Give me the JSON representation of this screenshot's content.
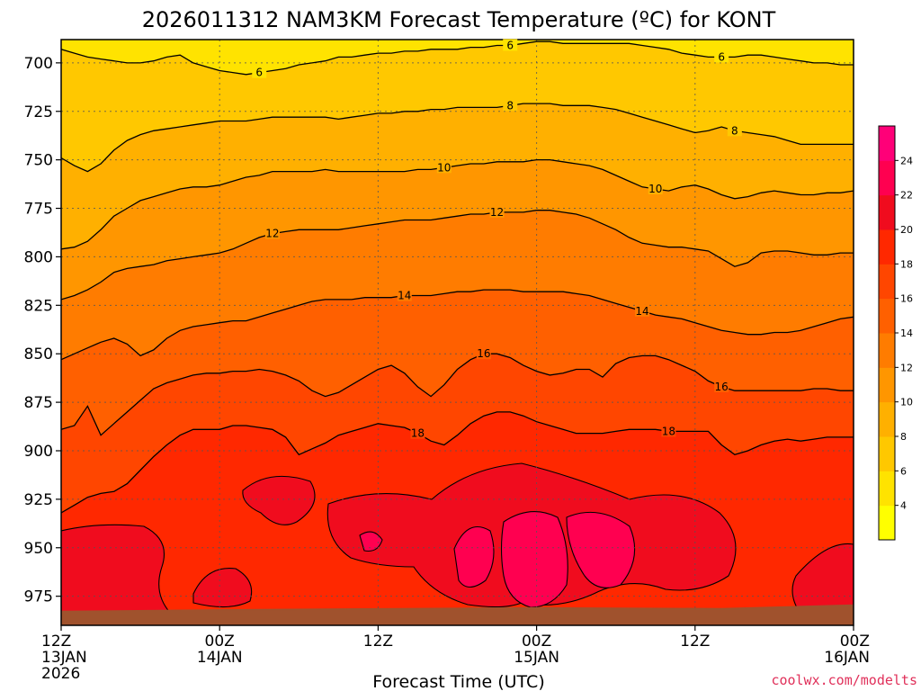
{
  "chart_data": {
    "type": "heatmap",
    "title": "2026011312 NAM3KM Forecast Temperature (ºC) for KONT",
    "xlabel": "Forecast Time (UTC)",
    "ylabel": "",
    "credit": "coolwx.com/modelts",
    "x_ticks": [
      {
        "hour": 0,
        "lines": [
          "12Z",
          "13JAN",
          "2026"
        ]
      },
      {
        "hour": 12,
        "lines": [
          "00Z",
          "14JAN"
        ]
      },
      {
        "hour": 24,
        "lines": [
          "12Z"
        ]
      },
      {
        "hour": 36,
        "lines": [
          "00Z",
          "15JAN"
        ]
      },
      {
        "hour": 48,
        "lines": [
          "12Z"
        ]
      },
      {
        "hour": 60,
        "lines": [
          "00Z",
          "16JAN"
        ]
      }
    ],
    "xlim": [
      0,
      60
    ],
    "y_ticks": [
      700,
      725,
      750,
      775,
      800,
      825,
      850,
      875,
      900,
      925,
      950,
      975
    ],
    "ylim": [
      688,
      990
    ],
    "surface_pressure_hpa": 982,
    "colorbar": {
      "levels": [
        2,
        4,
        6,
        8,
        10,
        12,
        14,
        16,
        18,
        20,
        22,
        24,
        26
      ],
      "labels": [
        4,
        6,
        8,
        10,
        12,
        14,
        16,
        18,
        20,
        22,
        24
      ],
      "colors": [
        "#ffff00",
        "#ffe300",
        "#ffc800",
        "#ffb000",
        "#ff9600",
        "#ff7c00",
        "#ff6000",
        "#ff4600",
        "#ff2800",
        "#f00c1e",
        "#ff0050",
        "#ff0078"
      ]
    },
    "contours": [
      {
        "value": 6,
        "pressure_by_hour": [
          693,
          695,
          697,
          698,
          699,
          700,
          700,
          699,
          697,
          696,
          700,
          702,
          704,
          705,
          706,
          705,
          704,
          703,
          701,
          700,
          699,
          697,
          697,
          696,
          695,
          695,
          694,
          694,
          693,
          693,
          693,
          692,
          692,
          691,
          691,
          690,
          689,
          689,
          690,
          690,
          690,
          690,
          690,
          690,
          691,
          692,
          693,
          695,
          696,
          697,
          697,
          697,
          696,
          696,
          697,
          698,
          699,
          700,
          700,
          701,
          701
        ]
      },
      {
        "value": 8,
        "pressure_by_hour": [
          749,
          753,
          756,
          752,
          745,
          740,
          737,
          735,
          734,
          733,
          732,
          731,
          730,
          730,
          730,
          729,
          728,
          728,
          728,
          728,
          728,
          729,
          728,
          727,
          726,
          726,
          725,
          725,
          724,
          724,
          723,
          723,
          723,
          723,
          722,
          721,
          721,
          721,
          722,
          722,
          722,
          723,
          724,
          726,
          728,
          730,
          732,
          734,
          736,
          735,
          733,
          735,
          736,
          737,
          738,
          740,
          742,
          742,
          742,
          742,
          742
        ]
      },
      {
        "value": 10,
        "pressure_by_hour": [
          796,
          795,
          792,
          786,
          779,
          775,
          771,
          769,
          767,
          765,
          764,
          764,
          763,
          761,
          759,
          758,
          756,
          756,
          756,
          756,
          755,
          756,
          756,
          756,
          756,
          756,
          756,
          755,
          755,
          754,
          753,
          752,
          752,
          751,
          751,
          751,
          750,
          750,
          751,
          752,
          753,
          755,
          758,
          761,
          764,
          765,
          766,
          764,
          763,
          765,
          768,
          770,
          769,
          767,
          766,
          767,
          768,
          768,
          767,
          767,
          766
        ]
      },
      {
        "value": 12,
        "pressure_by_hour": [
          822,
          820,
          817,
          813,
          808,
          806,
          805,
          804,
          802,
          801,
          800,
          799,
          798,
          796,
          793,
          790,
          788,
          787,
          786,
          786,
          786,
          786,
          785,
          784,
          783,
          782,
          781,
          781,
          781,
          780,
          779,
          778,
          778,
          777,
          777,
          777,
          776,
          776,
          777,
          778,
          780,
          783,
          786,
          790,
          793,
          794,
          795,
          795,
          796,
          797,
          801,
          805,
          803,
          798,
          797,
          797,
          798,
          799,
          799,
          798,
          798
        ]
      },
      {
        "value": 14,
        "pressure_by_hour": [
          853,
          850,
          847,
          844,
          842,
          845,
          851,
          848,
          842,
          838,
          836,
          835,
          834,
          833,
          833,
          831,
          829,
          827,
          825,
          823,
          822,
          822,
          822,
          821,
          821,
          821,
          820,
          820,
          820,
          819,
          818,
          818,
          817,
          817,
          817,
          818,
          818,
          818,
          818,
          819,
          820,
          822,
          824,
          826,
          828,
          830,
          831,
          832,
          834,
          836,
          838,
          839,
          840,
          840,
          839,
          839,
          838,
          836,
          834,
          832,
          831
        ]
      },
      {
        "value": 16,
        "pressure_by_hour": [
          889,
          887,
          877,
          892,
          886,
          880,
          874,
          868,
          865,
          863,
          861,
          860,
          860,
          859,
          859,
          858,
          859,
          861,
          864,
          869,
          872,
          870,
          866,
          862,
          858,
          856,
          860,
          867,
          872,
          866,
          858,
          853,
          850,
          850,
          852,
          856,
          859,
          861,
          860,
          858,
          858,
          862,
          855,
          852,
          851,
          851,
          853,
          856,
          859,
          864,
          867,
          869,
          869,
          869,
          869,
          869,
          869,
          868,
          868,
          869,
          869
        ]
      },
      {
        "value": 18,
        "pressure_by_hour": [
          932,
          928,
          924,
          922,
          921,
          917,
          910,
          903,
          897,
          892,
          889,
          889,
          889,
          887,
          887,
          888,
          889,
          893,
          902,
          899,
          896,
          892,
          890,
          888,
          886,
          887,
          888,
          891,
          895,
          897,
          892,
          886,
          882,
          880,
          880,
          882,
          885,
          887,
          889,
          891,
          891,
          891,
          890,
          889,
          889,
          889,
          890,
          890,
          890,
          890,
          897,
          902,
          900,
          897,
          895,
          894,
          895,
          894,
          893,
          893,
          893
        ]
      }
    ]
  }
}
